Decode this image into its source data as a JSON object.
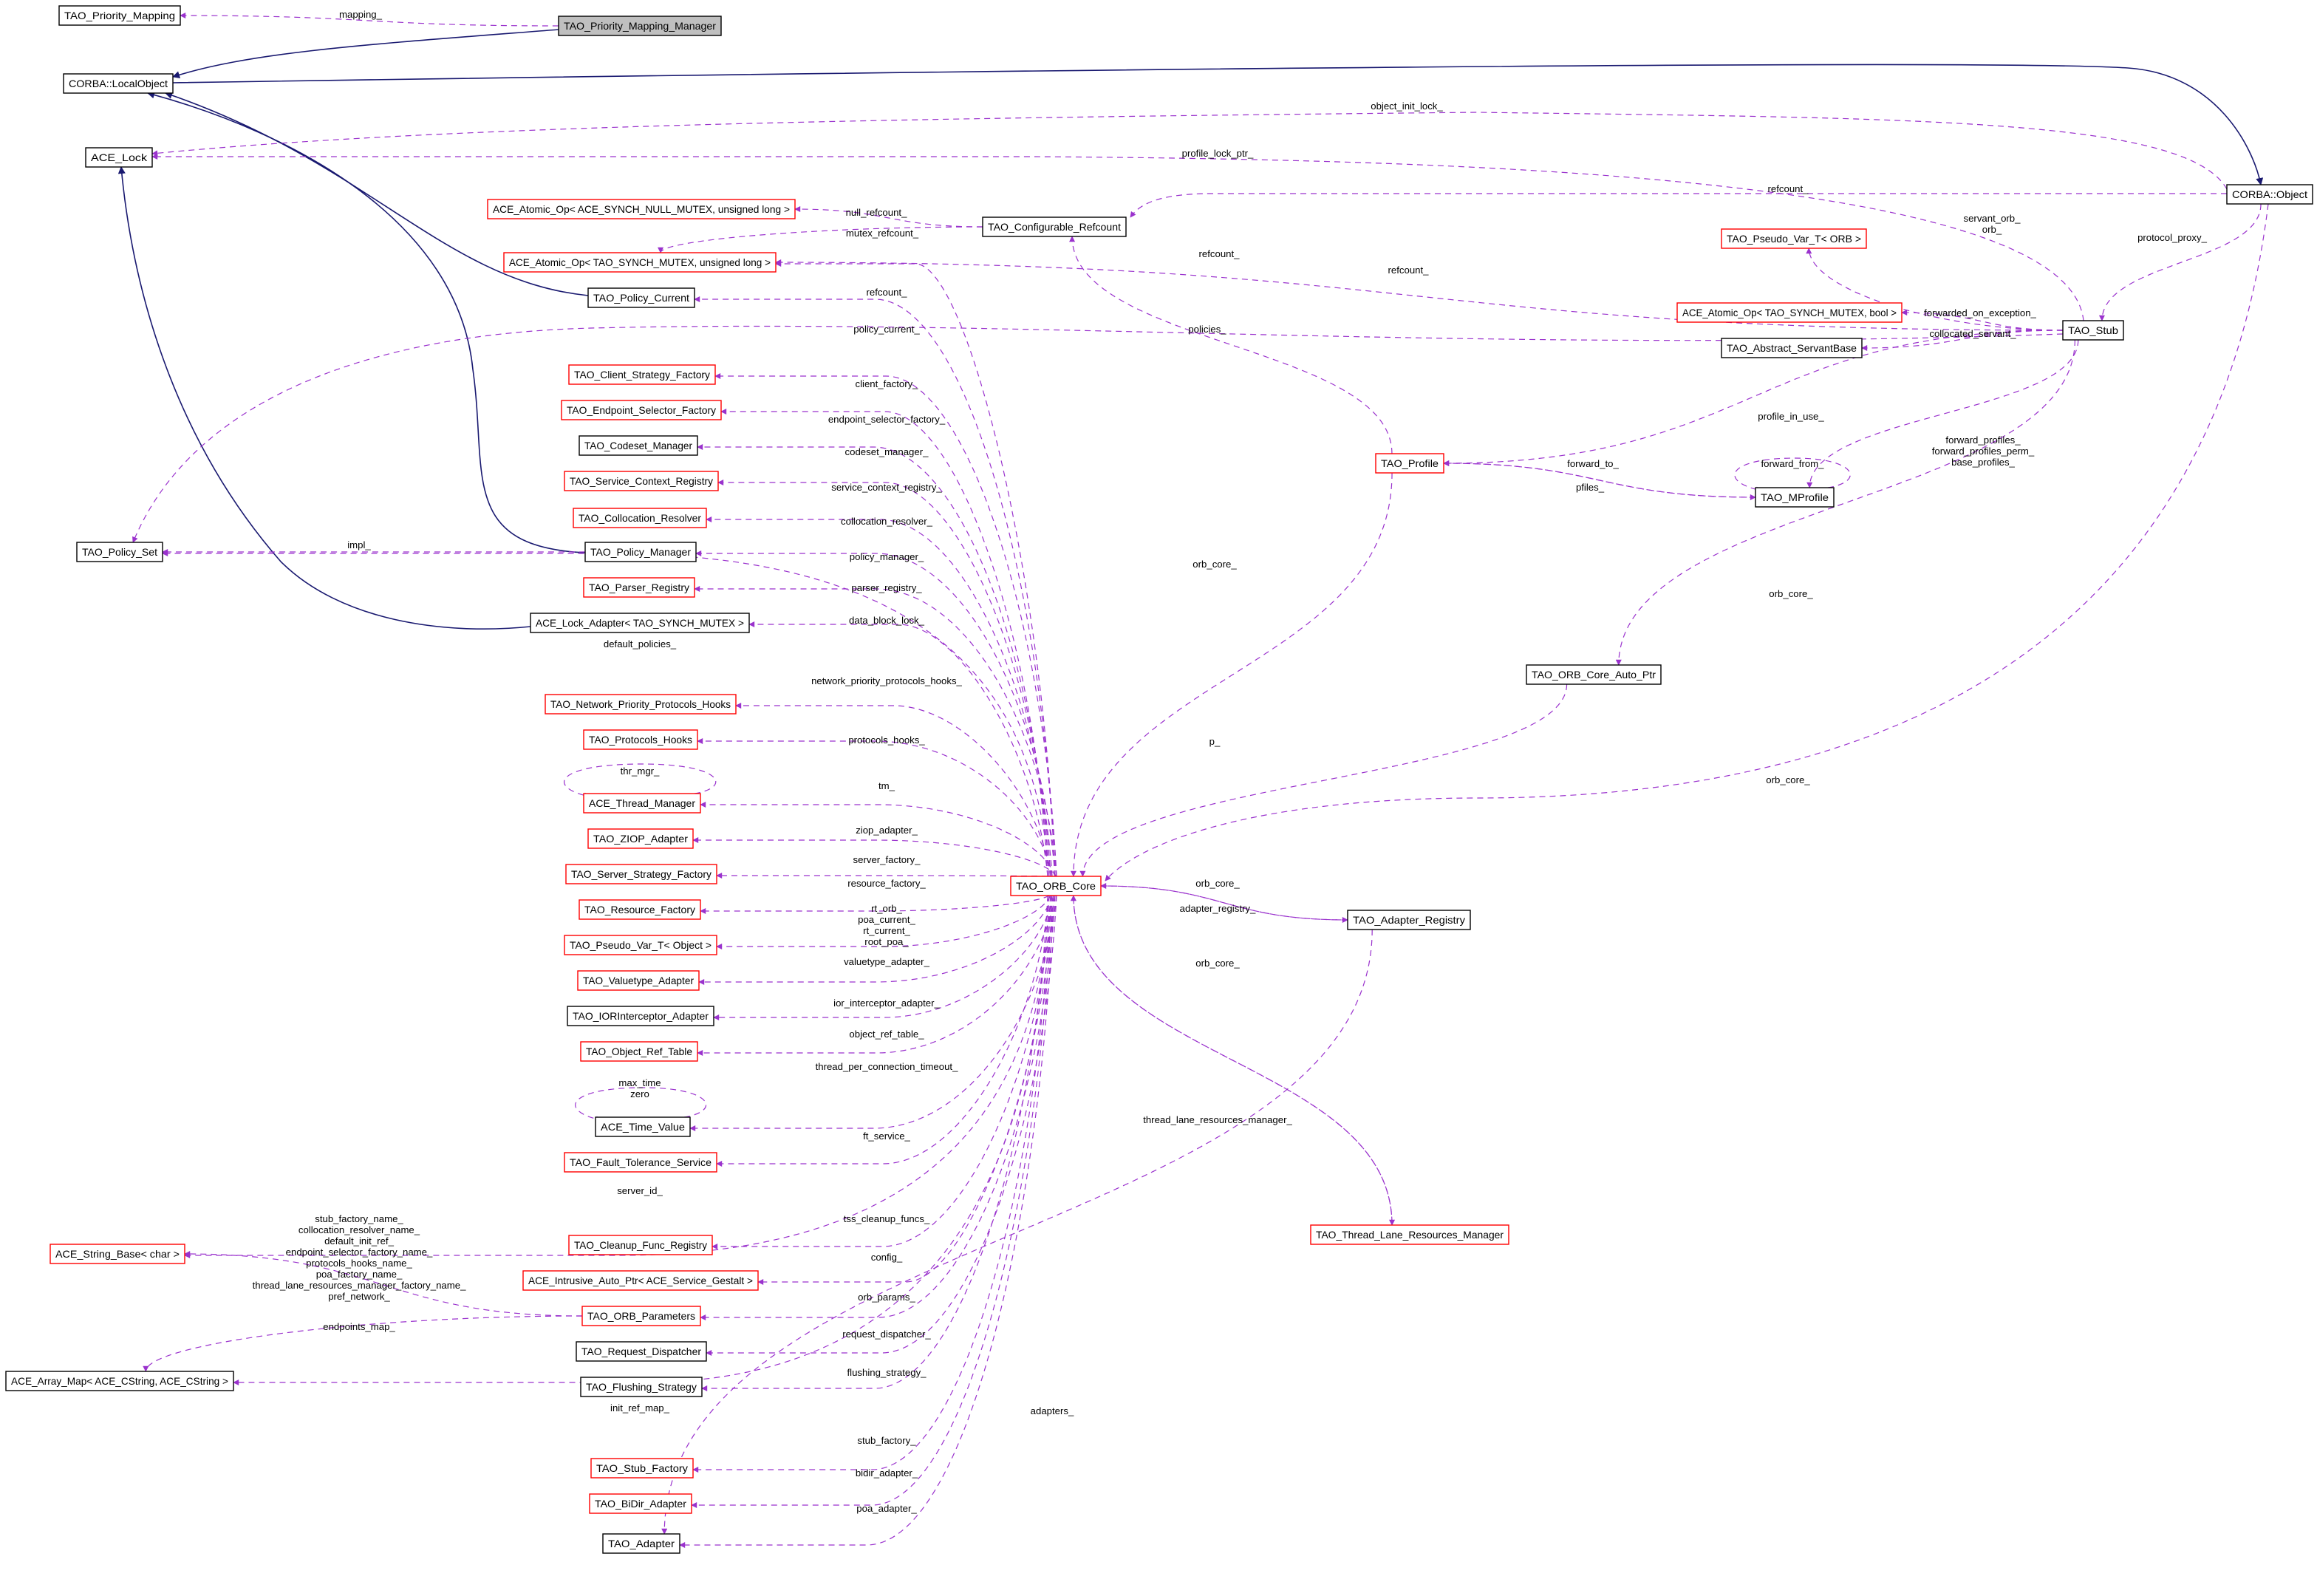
{
  "diagram": {
    "colors": {
      "inherit": "#191970",
      "use": "#9a32cd",
      "node_border_default": "#000000",
      "node_border_incomplete": "#ff0000",
      "focus_fill": "#bfbfbf"
    },
    "nodes": [
      {
        "name": "TAO_Priority_Mapping",
        "border": "black"
      },
      {
        "name": "TAO_Priority_Mapping_Manager",
        "border": "black",
        "focus": true
      },
      {
        "name": "CORBA::LocalObject",
        "border": "black"
      },
      {
        "name": "ACE_Lock",
        "border": "black"
      },
      {
        "name": "ACE_Atomic_Op< ACE_SYNCH_NULL_MUTEX, unsigned long >",
        "border": "red"
      },
      {
        "name": "ACE_Atomic_Op< TAO_SYNCH_MUTEX, unsigned long >",
        "border": "red"
      },
      {
        "name": "TAO_Configurable_Refcount",
        "border": "black"
      },
      {
        "name": "TAO_Policy_Current",
        "border": "black"
      },
      {
        "name": "TAO_Client_Strategy_Factory",
        "border": "red"
      },
      {
        "name": "TAO_Endpoint_Selector_Factory",
        "border": "red"
      },
      {
        "name": "TAO_Codeset_Manager",
        "border": "black"
      },
      {
        "name": "TAO_Service_Context_Registry",
        "border": "red"
      },
      {
        "name": "TAO_Collocation_Resolver",
        "border": "red"
      },
      {
        "name": "TAO_Policy_Set",
        "border": "black"
      },
      {
        "name": "TAO_Policy_Manager",
        "border": "black"
      },
      {
        "name": "TAO_Parser_Registry",
        "border": "red"
      },
      {
        "name": "ACE_Lock_Adapter< TAO_SYNCH_MUTEX >",
        "border": "black"
      },
      {
        "name": "TAO_Network_Priority_Protocols_Hooks",
        "border": "red"
      },
      {
        "name": "TAO_Protocols_Hooks",
        "border": "red"
      },
      {
        "name": "ACE_Thread_Manager",
        "border": "red"
      },
      {
        "name": "TAO_ZIOP_Adapter",
        "border": "red"
      },
      {
        "name": "TAO_Server_Strategy_Factory",
        "border": "red"
      },
      {
        "name": "TAO_Resource_Factory",
        "border": "red"
      },
      {
        "name": "TAO_Pseudo_Var_T< Object >",
        "border": "red"
      },
      {
        "name": "TAO_Valuetype_Adapter",
        "border": "red"
      },
      {
        "name": "TAO_IORInterceptor_Adapter",
        "border": "black"
      },
      {
        "name": "TAO_Object_Ref_Table",
        "border": "red"
      },
      {
        "name": "ACE_Time_Value",
        "border": "black"
      },
      {
        "name": "TAO_Fault_Tolerance_Service",
        "border": "red"
      },
      {
        "name": "ACE_String_Base< char >",
        "border": "red"
      },
      {
        "name": "TAO_Cleanup_Func_Registry",
        "border": "red"
      },
      {
        "name": "ACE_Intrusive_Auto_Ptr< ACE_Service_Gestalt >",
        "border": "red"
      },
      {
        "name": "TAO_ORB_Parameters",
        "border": "red"
      },
      {
        "name": "TAO_Request_Dispatcher",
        "border": "black"
      },
      {
        "name": "ACE_Array_Map< ACE_CString, ACE_CString >",
        "border": "black"
      },
      {
        "name": "TAO_Flushing_Strategy",
        "border": "black"
      },
      {
        "name": "TAO_Stub_Factory",
        "border": "red"
      },
      {
        "name": "TAO_BiDir_Adapter",
        "border": "red"
      },
      {
        "name": "TAO_Adapter",
        "border": "black"
      },
      {
        "name": "TAO_ORB_Core",
        "border": "red"
      },
      {
        "name": "TAO_Adapter_Registry",
        "border": "black"
      },
      {
        "name": "TAO_Thread_Lane_Resources_Manager",
        "border": "red"
      },
      {
        "name": "TAO_ORB_Core_Auto_Ptr",
        "border": "black"
      },
      {
        "name": "TAO_Profile",
        "border": "red"
      },
      {
        "name": "TAO_MProfile",
        "border": "black"
      },
      {
        "name": "TAO_Stub",
        "border": "black"
      },
      {
        "name": "CORBA::Object",
        "border": "black"
      },
      {
        "name": "TAO_Pseudo_Var_T< ORB >",
        "border": "red"
      },
      {
        "name": "ACE_Atomic_Op< TAO_SYNCH_MUTEX, bool >",
        "border": "red"
      },
      {
        "name": "TAO_Abstract_ServantBase",
        "border": "black"
      }
    ],
    "edges": [
      {
        "from": "TAO_Priority_Mapping_Manager",
        "to": "CORBA::LocalObject",
        "kind": "inherit",
        "label": []
      },
      {
        "from": "CORBA::LocalObject",
        "to": "CORBA::Object",
        "kind": "inherit",
        "label": []
      },
      {
        "from": "TAO_Policy_Current",
        "to": "CORBA::LocalObject",
        "kind": "inherit",
        "label": []
      },
      {
        "from": "TAO_Policy_Manager",
        "to": "CORBA::LocalObject",
        "kind": "inherit",
        "label": []
      },
      {
        "from": "ACE_Lock_Adapter< TAO_SYNCH_MUTEX >",
        "to": "ACE_Lock",
        "kind": "inherit",
        "label": []
      },
      {
        "from": "TAO_Priority_Mapping_Manager",
        "to": "TAO_Priority_Mapping",
        "kind": "use",
        "label": [
          "mapping_"
        ]
      },
      {
        "from": "CORBA::Object",
        "to": "ACE_Lock",
        "kind": "use",
        "label": [
          "object_init_lock_"
        ]
      },
      {
        "from": "TAO_Stub",
        "to": "ACE_Lock",
        "kind": "use",
        "label": [
          "profile_lock_ptr_"
        ]
      },
      {
        "from": "CORBA::Object",
        "to": "TAO_Configurable_Refcount",
        "kind": "use",
        "label": [
          "refcount_"
        ]
      },
      {
        "from": "TAO_Configurable_Refcount",
        "to": "ACE_Atomic_Op< ACE_SYNCH_NULL_MUTEX, unsigned long >",
        "kind": "use",
        "label": [
          "null_refcount_"
        ]
      },
      {
        "from": "TAO_Configurable_Refcount",
        "to": "ACE_Atomic_Op< TAO_SYNCH_MUTEX, unsigned long >",
        "kind": "use",
        "label": [
          "mutex_refcount_"
        ]
      },
      {
        "from": "TAO_Stub",
        "to": "ACE_Atomic_Op< TAO_SYNCH_MUTEX, unsigned long >",
        "kind": "use",
        "label": [
          "refcount_"
        ]
      },
      {
        "from": "TAO_ORB_Core",
        "to": "ACE_Atomic_Op< TAO_SYNCH_MUTEX, unsigned long >",
        "kind": "use",
        "label": [
          "refcount_"
        ]
      },
      {
        "from": "TAO_Profile",
        "to": "TAO_Configurable_Refcount",
        "kind": "use",
        "label": [
          "refcount_"
        ]
      },
      {
        "from": "TAO_Stub",
        "to": "TAO_Pseudo_Var_T< ORB >",
        "kind": "use",
        "label": [
          "servant_orb_",
          "orb_"
        ]
      },
      {
        "from": "TAO_Stub",
        "to": "ACE_Atomic_Op< TAO_SYNCH_MUTEX, bool >",
        "kind": "use",
        "label": [
          "forwarded_on_exception_"
        ]
      },
      {
        "from": "TAO_Stub",
        "to": "TAO_Abstract_ServantBase",
        "kind": "use",
        "label": [
          "collocated_servant_"
        ]
      },
      {
        "from": "TAO_Stub",
        "to": "TAO_Policy_Set",
        "kind": "use",
        "label": [
          "policies_"
        ]
      },
      {
        "from": "CORBA::Object",
        "to": "TAO_Stub",
        "kind": "use",
        "label": [
          "protocol_proxy_"
        ]
      },
      {
        "from": "TAO_Stub",
        "to": "TAO_Profile",
        "kind": "use",
        "label": [
          "profile_in_use_"
        ]
      },
      {
        "from": "TAO_Stub",
        "to": "TAO_MProfile",
        "kind": "use",
        "label": [
          "forward_profiles_",
          "forward_profiles_perm_",
          "base_profiles_"
        ]
      },
      {
        "from": "TAO_Profile",
        "to": "TAO_MProfile",
        "kind": "use",
        "label": [
          "forward_to_"
        ]
      },
      {
        "from": "TAO_MProfile",
        "to": "TAO_Profile",
        "kind": "use",
        "label": [
          "pfiles_"
        ]
      },
      {
        "from": "TAO_MProfile",
        "to": "TAO_MProfile",
        "kind": "use",
        "label": [
          "forward_from_"
        ]
      },
      {
        "from": "TAO_Stub",
        "to": "TAO_ORB_Core_Auto_Ptr",
        "kind": "use",
        "label": [
          "orb_core_"
        ]
      },
      {
        "from": "CORBA::Object",
        "to": "TAO_ORB_Core",
        "kind": "use",
        "label": [
          "orb_core_"
        ]
      },
      {
        "from": "TAO_Profile",
        "to": "TAO_ORB_Core",
        "kind": "use",
        "label": [
          "orb_core_"
        ]
      },
      {
        "from": "TAO_ORB_Core_Auto_Ptr",
        "to": "TAO_ORB_Core",
        "kind": "use",
        "label": [
          "p_"
        ]
      },
      {
        "from": "TAO_Adapter_Registry",
        "to": "TAO_ORB_Core",
        "kind": "use",
        "label": [
          "orb_core_"
        ]
      },
      {
        "from": "TAO_ORB_Core",
        "to": "TAO_Adapter_Registry",
        "kind": "use",
        "label": [
          "adapter_registry_"
        ]
      },
      {
        "from": "TAO_Thread_Lane_Resources_Manager",
        "to": "TAO_ORB_Core",
        "kind": "use",
        "label": [
          "orb_core_"
        ]
      },
      {
        "from": "TAO_ORB_Core",
        "to": "TAO_Thread_Lane_Resources_Manager",
        "kind": "use",
        "label": [
          "thread_lane_resources_manager_"
        ]
      },
      {
        "from": "TAO_Adapter_Registry",
        "to": "TAO_Adapter",
        "kind": "use",
        "label": [
          "adapters_"
        ]
      },
      {
        "from": "TAO_ORB_Core",
        "to": "TAO_Policy_Current",
        "kind": "use",
        "label": [
          "policy_current_"
        ]
      },
      {
        "from": "TAO_ORB_Core",
        "to": "TAO_Client_Strategy_Factory",
        "kind": "use",
        "label": [
          "client_factory_"
        ]
      },
      {
        "from": "TAO_ORB_Core",
        "to": "TAO_Endpoint_Selector_Factory",
        "kind": "use",
        "label": [
          "endpoint_selector_factory_"
        ]
      },
      {
        "from": "TAO_ORB_Core",
        "to": "TAO_Codeset_Manager",
        "kind": "use",
        "label": [
          "codeset_manager_"
        ]
      },
      {
        "from": "TAO_ORB_Core",
        "to": "TAO_Service_Context_Registry",
        "kind": "use",
        "label": [
          "service_context_registry_"
        ]
      },
      {
        "from": "TAO_ORB_Core",
        "to": "TAO_Collocation_Resolver",
        "kind": "use",
        "label": [
          "collocation_resolver_"
        ]
      },
      {
        "from": "TAO_Policy_Manager",
        "to": "TAO_Policy_Set",
        "kind": "use",
        "label": [
          "impl_"
        ]
      },
      {
        "from": "TAO_ORB_Core",
        "to": "TAO_Policy_Manager",
        "kind": "use",
        "label": [
          "policy_manager_"
        ]
      },
      {
        "from": "TAO_ORB_Core",
        "to": "TAO_Parser_Registry",
        "kind": "use",
        "label": [
          "parser_registry_"
        ]
      },
      {
        "from": "TAO_ORB_Core",
        "to": "ACE_Lock_Adapter< TAO_SYNCH_MUTEX >",
        "kind": "use",
        "label": [
          "data_block_lock_"
        ]
      },
      {
        "from": "TAO_ORB_Core",
        "to": "TAO_Policy_Set",
        "kind": "use",
        "label": [
          "default_policies_"
        ]
      },
      {
        "from": "TAO_ORB_Core",
        "to": "TAO_Network_Priority_Protocols_Hooks",
        "kind": "use",
        "label": [
          "network_priority_protocols_hooks_"
        ]
      },
      {
        "from": "TAO_ORB_Core",
        "to": "TAO_Protocols_Hooks",
        "kind": "use",
        "label": [
          "protocols_hooks_"
        ]
      },
      {
        "from": "ACE_Thread_Manager",
        "to": "ACE_Thread_Manager",
        "kind": "use",
        "label": [
          "thr_mgr_"
        ]
      },
      {
        "from": "TAO_ORB_Core",
        "to": "ACE_Thread_Manager",
        "kind": "use",
        "label": [
          "tm_"
        ]
      },
      {
        "from": "TAO_ORB_Core",
        "to": "TAO_ZIOP_Adapter",
        "kind": "use",
        "label": [
          "ziop_adapter_"
        ]
      },
      {
        "from": "TAO_ORB_Core",
        "to": "TAO_Server_Strategy_Factory",
        "kind": "use",
        "label": [
          "server_factory_"
        ]
      },
      {
        "from": "TAO_ORB_Core",
        "to": "TAO_Resource_Factory",
        "kind": "use",
        "label": [
          "resource_factory_"
        ]
      },
      {
        "from": "TAO_ORB_Core",
        "to": "TAO_Pseudo_Var_T< Object >",
        "kind": "use",
        "label": [
          "rt_orb_",
          "poa_current_",
          "rt_current_",
          "root_poa_"
        ]
      },
      {
        "from": "TAO_ORB_Core",
        "to": "TAO_Valuetype_Adapter",
        "kind": "use",
        "label": [
          "valuetype_adapter_"
        ]
      },
      {
        "from": "TAO_ORB_Core",
        "to": "TAO_IORInterceptor_Adapter",
        "kind": "use",
        "label": [
          "ior_interceptor_adapter_"
        ]
      },
      {
        "from": "TAO_ORB_Core",
        "to": "TAO_Object_Ref_Table",
        "kind": "use",
        "label": [
          "object_ref_table_"
        ]
      },
      {
        "from": "TAO_ORB_Core",
        "to": "ACE_Time_Value",
        "kind": "use",
        "label": [
          "thread_per_connection_timeout_"
        ]
      },
      {
        "from": "ACE_Time_Value",
        "to": "ACE_Time_Value",
        "kind": "use",
        "label": [
          "max_time",
          "zero"
        ]
      },
      {
        "from": "TAO_ORB_Core",
        "to": "TAO_Fault_Tolerance_Service",
        "kind": "use",
        "label": [
          "ft_service_"
        ]
      },
      {
        "from": "TAO_ORB_Core",
        "to": "ACE_String_Base< char >",
        "kind": "use",
        "label": [
          "server_id_"
        ]
      },
      {
        "from": "TAO_ORB_Core",
        "to": "TAO_Cleanup_Func_Registry",
        "kind": "use",
        "label": [
          "tss_cleanup_funcs_"
        ]
      },
      {
        "from": "TAO_ORB_Core",
        "to": "ACE_Intrusive_Auto_Ptr< ACE_Service_Gestalt >",
        "kind": "use",
        "label": [
          "config_"
        ]
      },
      {
        "from": "TAO_ORB_Core",
        "to": "TAO_ORB_Parameters",
        "kind": "use",
        "label": [
          "orb_params_"
        ]
      },
      {
        "from": "TAO_ORB_Core",
        "to": "TAO_Request_Dispatcher",
        "kind": "use",
        "label": [
          "request_dispatcher_"
        ]
      },
      {
        "from": "TAO_ORB_Core",
        "to": "TAO_Flushing_Strategy",
        "kind": "use",
        "label": [
          "flushing_strategy_"
        ]
      },
      {
        "from": "TAO_ORB_Core",
        "to": "ACE_Array_Map< ACE_CString, ACE_CString >",
        "kind": "use",
        "label": [
          "init_ref_map_"
        ]
      },
      {
        "from": "TAO_ORB_Core",
        "to": "TAO_Stub_Factory",
        "kind": "use",
        "label": [
          "stub_factory_"
        ]
      },
      {
        "from": "TAO_ORB_Core",
        "to": "TAO_BiDir_Adapter",
        "kind": "use",
        "label": [
          "bidir_adapter_"
        ]
      },
      {
        "from": "TAO_ORB_Core",
        "to": "TAO_Adapter",
        "kind": "use",
        "label": [
          "poa_adapter_"
        ]
      },
      {
        "from": "TAO_ORB_Parameters",
        "to": "ACE_String_Base< char >",
        "kind": "use",
        "label": [
          "stub_factory_name_",
          "collocation_resolver_name_",
          "default_init_ref_",
          "endpoint_selector_factory_name_",
          "protocols_hooks_name_",
          "poa_factory_name_",
          "thread_lane_resources_manager_factory_name_",
          "pref_network_"
        ]
      },
      {
        "from": "TAO_ORB_Parameters",
        "to": "ACE_Array_Map< ACE_CString, ACE_CString >",
        "kind": "use",
        "label": [
          "endpoints_map_"
        ]
      }
    ]
  }
}
